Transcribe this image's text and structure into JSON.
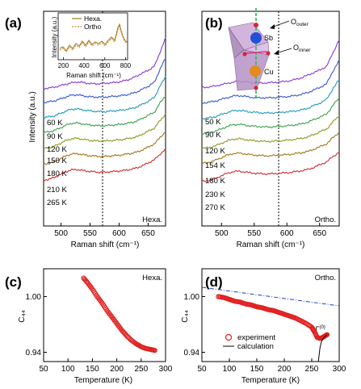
{
  "chart_data": [
    {
      "panel": "(a)",
      "type": "line",
      "phase_label": "Hexa.",
      "xlabel": "Raman shift (cm⁻¹)",
      "ylabel": "Intensity (a.u.)",
      "xlim": [
        470,
        680
      ],
      "xticks": [
        500,
        550,
        600,
        650
      ],
      "marker_line_x": 588,
      "series": [
        {
          "name": "60 K",
          "color": "#8b38d6",
          "y": [
            0.16,
            0.165,
            0.175,
            0.19,
            0.205,
            0.22,
            0.23,
            0.225,
            0.215,
            0.21,
            0.21,
            0.215,
            0.22,
            0.225,
            0.235,
            0.25,
            0.27,
            0.3,
            0.33,
            0.36,
            0.4,
            0.55,
            0.7
          ]
        },
        {
          "name": "90 K",
          "color": "#3a56d0",
          "y": [
            0.12,
            0.13,
            0.14,
            0.16,
            0.18,
            0.2,
            0.205,
            0.195,
            0.185,
            0.18,
            0.18,
            0.18,
            0.185,
            0.19,
            0.195,
            0.205,
            0.22,
            0.24,
            0.27,
            0.3,
            0.34,
            0.48,
            0.6
          ]
        },
        {
          "name": "120 K",
          "color": "#1e9bb5",
          "y": [
            0.08,
            0.09,
            0.1,
            0.125,
            0.15,
            0.17,
            0.175,
            0.165,
            0.155,
            0.15,
            0.145,
            0.145,
            0.15,
            0.155,
            0.16,
            0.17,
            0.18,
            0.2,
            0.23,
            0.26,
            0.3,
            0.42,
            0.52
          ]
        },
        {
          "name": "150 K",
          "color": "#3aa14a",
          "y": [
            0.04,
            0.05,
            0.065,
            0.09,
            0.12,
            0.14,
            0.145,
            0.135,
            0.125,
            0.12,
            0.115,
            0.115,
            0.12,
            0.125,
            0.13,
            0.14,
            0.15,
            0.17,
            0.2,
            0.23,
            0.26,
            0.36,
            0.44
          ]
        },
        {
          "name": "180 K",
          "color": "#8a9a1e",
          "y": [
            0.0,
            0.01,
            0.025,
            0.055,
            0.085,
            0.105,
            0.11,
            0.1,
            0.09,
            0.085,
            0.08,
            0.08,
            0.085,
            0.09,
            0.095,
            0.105,
            0.115,
            0.13,
            0.16,
            0.19,
            0.22,
            0.3,
            0.37
          ]
        },
        {
          "name": "210 K",
          "color": "#a0751a",
          "y": [
            -0.04,
            -0.03,
            -0.01,
            0.02,
            0.05,
            0.07,
            0.075,
            0.065,
            0.055,
            0.05,
            0.045,
            0.045,
            0.05,
            0.055,
            0.06,
            0.07,
            0.08,
            0.095,
            0.12,
            0.15,
            0.18,
            0.25,
            0.31
          ]
        },
        {
          "name": "265 K",
          "color": "#d12b2b",
          "y": [
            -0.08,
            -0.07,
            -0.05,
            -0.02,
            0.01,
            0.03,
            0.035,
            0.025,
            0.015,
            0.01,
            0.005,
            0.005,
            0.01,
            0.015,
            0.02,
            0.03,
            0.04,
            0.055,
            0.08,
            0.11,
            0.14,
            0.2,
            0.25
          ]
        }
      ],
      "inset": {
        "ylabel": "Intensity (a.u.)",
        "xlabel": "Raman shift (cm⁻¹)",
        "xticks": [
          200,
          400,
          600,
          800
        ],
        "xlim": [
          150,
          820
        ],
        "legend": [
          {
            "name": "Hexa.",
            "color": "#a0751a",
            "style": "solid"
          },
          {
            "name": "Ortho",
            "color": "#c8882a",
            "style": "dashed"
          }
        ]
      }
    },
    {
      "panel": "(b)",
      "type": "line",
      "phase_label": "Ortho.",
      "xlabel": "Raman shift (cm⁻¹)",
      "xlim": [
        470,
        680
      ],
      "xticks": [
        500,
        550,
        600,
        650
      ],
      "marker_line_x": 588,
      "series": [
        {
          "name": "50 K",
          "color": "#8b38d6"
        },
        {
          "name": "90 K",
          "color": "#3a56d0"
        },
        {
          "name": "120 K",
          "color": "#1e9bb5"
        },
        {
          "name": "154 K",
          "color": "#3aa14a"
        },
        {
          "name": "180 K",
          "color": "#8a9a1e"
        },
        {
          "name": "230 K",
          "color": "#a0751a"
        },
        {
          "name": "270 K",
          "color": "#d12b2b"
        }
      ],
      "structure_labels": {
        "outer": "O",
        "outer_sub": "outer",
        "inner": "O",
        "inner_sub": "inner",
        "sb": "Sb",
        "cu": "Cu"
      }
    },
    {
      "panel": "(c)",
      "type": "scatter",
      "phase_label": "Hexa.",
      "xlabel": "Temperature (K)",
      "ylabel": "C₄₄",
      "xlim": [
        50,
        300
      ],
      "ylim": [
        0.93,
        1.03
      ],
      "xticks": [
        50,
        100,
        150,
        200,
        250,
        300
      ],
      "yticks": [
        0.94,
        1.0
      ],
      "yticklabels": [
        "0.94",
        "1.00"
      ],
      "points": [
        [
          132,
          1.02
        ],
        [
          140,
          1.015
        ],
        [
          150,
          1.008
        ],
        [
          160,
          1.0
        ],
        [
          170,
          0.993
        ],
        [
          180,
          0.985
        ],
        [
          190,
          0.978
        ],
        [
          200,
          0.971
        ],
        [
          210,
          0.964
        ],
        [
          220,
          0.958
        ],
        [
          230,
          0.953
        ],
        [
          240,
          0.949
        ],
        [
          250,
          0.946
        ],
        [
          260,
          0.944
        ],
        [
          270,
          0.943
        ],
        [
          278,
          0.942
        ]
      ]
    },
    {
      "panel": "(d)",
      "type": "scatter",
      "phase_label": "Ortho.",
      "xlabel": "Temperature (K)",
      "ylabel": "C₄₄",
      "xlim": [
        50,
        300
      ],
      "ylim": [
        0.93,
        1.03
      ],
      "xticks": [
        50,
        100,
        150,
        200,
        250,
        300
      ],
      "yticks": [
        0.94,
        1.0
      ],
      "yticklabels": [
        "0.94",
        "1.00"
      ],
      "points": [
        [
          80,
          1.0
        ],
        [
          90,
          0.999
        ],
        [
          100,
          0.997
        ],
        [
          110,
          0.995
        ],
        [
          120,
          0.994
        ],
        [
          130,
          0.992
        ],
        [
          140,
          0.991
        ],
        [
          150,
          0.989
        ],
        [
          160,
          0.988
        ],
        [
          170,
          0.986
        ],
        [
          180,
          0.985
        ],
        [
          190,
          0.983
        ],
        [
          200,
          0.981
        ],
        [
          210,
          0.979
        ],
        [
          220,
          0.977
        ],
        [
          230,
          0.974
        ],
        [
          240,
          0.971
        ],
        [
          250,
          0.967
        ],
        [
          255,
          0.962
        ],
        [
          260,
          0.956
        ],
        [
          265,
          0.955
        ],
        [
          270,
          0.956
        ],
        [
          275,
          0.958
        ],
        [
          278,
          0.959
        ]
      ],
      "background_line": {
        "label": "CΓ",
        "label_sup": "(0)",
        "color": "#1f3fbf",
        "from": [
          50,
          1.01
        ],
        "to": [
          300,
          0.99
        ]
      },
      "calculation_curve": [
        [
          262,
          0.93
        ],
        [
          265,
          0.945
        ],
        [
          268,
          0.952
        ],
        [
          272,
          0.956
        ],
        [
          278,
          0.959
        ]
      ],
      "legend": [
        {
          "name": "experiment",
          "marker": "open-circle",
          "color": "#e02020"
        },
        {
          "name": "calculation",
          "marker": "line",
          "color": "#000000"
        }
      ]
    }
  ]
}
